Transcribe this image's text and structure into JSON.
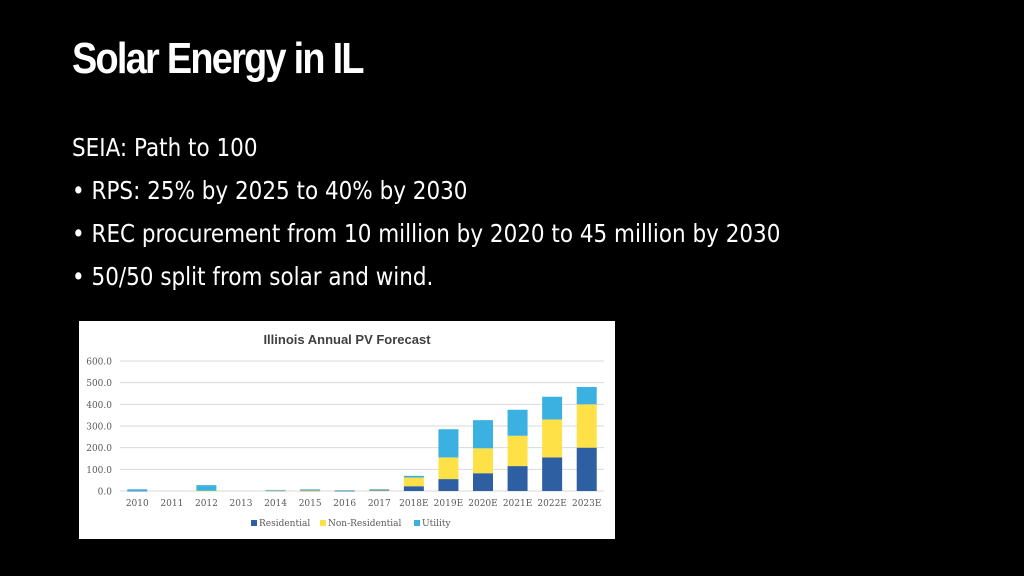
{
  "slide": {
    "title": "Solar Energy in IL",
    "intro": "SEIA: Path to 100",
    "bullets": [
      "RPS: 25% by 2025 to 40% by 2030",
      "REC procurement from 10 million by 2020 to 45 million by 2030",
      "50/50 split from solar and wind."
    ],
    "bullet_char": "•"
  },
  "colors": {
    "background": "#000000",
    "text": "#ffffff",
    "residential": "#2e5fa3",
    "non_residential": "#fde146",
    "utility": "#3bb1e2"
  },
  "chart_data": {
    "type": "bar",
    "stacked": true,
    "title": "Illinois Annual PV Forecast",
    "xlabel": "",
    "ylabel": "",
    "ylim": [
      0,
      600
    ],
    "yticks": [
      "600.0",
      "500.0",
      "400.0",
      "300.0",
      "200.0",
      "100.0",
      "0.0"
    ],
    "grid": true,
    "legend_position": "bottom",
    "categories": [
      "2010",
      "2011",
      "2012",
      "2013",
      "2014",
      "2015",
      "2016",
      "2017",
      "2018E",
      "2019E",
      "2020E",
      "2021E",
      "2022E",
      "2023E"
    ],
    "series": [
      {
        "name": "Residential",
        "color": "#2e5fa3",
        "values": [
          1,
          0,
          0,
          0,
          2,
          2,
          1,
          3,
          22,
          55,
          82,
          115,
          155,
          200
        ]
      },
      {
        "name": "Non-Residential",
        "color": "#fde146",
        "values": [
          0,
          0,
          1,
          0,
          1,
          3,
          2,
          4,
          40,
          100,
          115,
          140,
          175,
          200
        ]
      },
      {
        "name": "Utility",
        "color": "#3bb1e2",
        "values": [
          7,
          0,
          26,
          0,
          2,
          3,
          1,
          2,
          8,
          130,
          130,
          120,
          105,
          80
        ]
      }
    ]
  }
}
